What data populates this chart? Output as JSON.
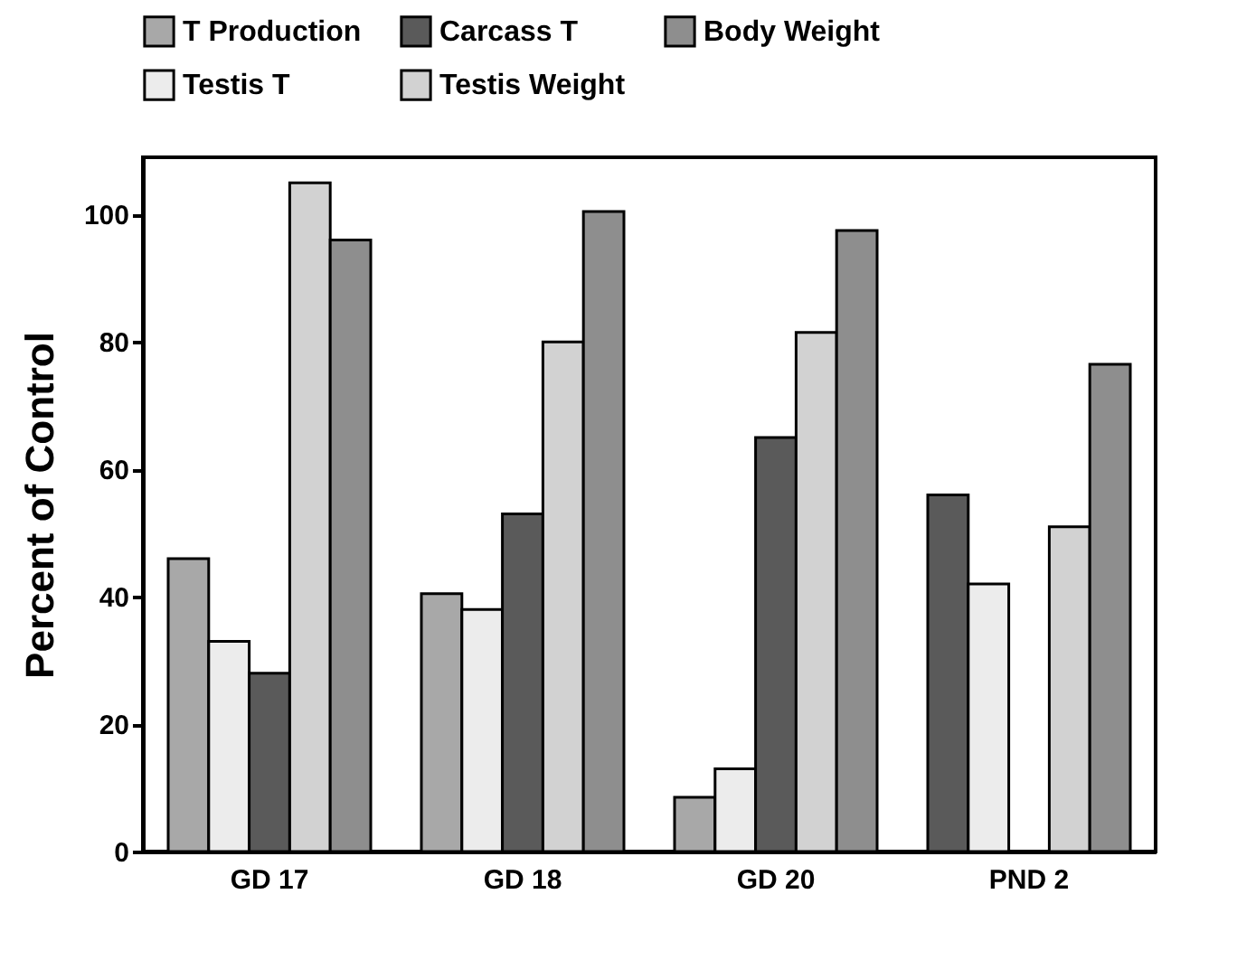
{
  "chart_data": {
    "type": "bar",
    "ylabel": "Percent of Control",
    "categories": [
      "GD 17",
      "GD 18",
      "GD 20",
      "PND 2"
    ],
    "series": [
      {
        "name": "T Production",
        "color": "#a8a8a8",
        "colors": [
          "#a8a8a8",
          "#a8a8a8",
          "#a8a8a8",
          "#5a5a5a"
        ],
        "values": [
          46,
          40.5,
          8.5,
          56
        ]
      },
      {
        "name": "Testis T",
        "color": "#ececec",
        "values": [
          33,
          38,
          13,
          42
        ]
      },
      {
        "name": "Carcass T",
        "color": "#5a5a5a",
        "values": [
          28,
          53,
          65,
          null
        ]
      },
      {
        "name": "Testis Weight",
        "color": "#d2d2d2",
        "values": [
          105,
          80,
          81.5,
          51
        ]
      },
      {
        "name": "Body Weight",
        "color": "#8e8e8e",
        "values": [
          96,
          100.5,
          97.5,
          76.5
        ]
      }
    ],
    "ylim": [
      0,
      109
    ],
    "yticks": [
      0,
      20,
      40,
      60,
      80,
      100
    ],
    "grid": false,
    "legend": "top"
  }
}
